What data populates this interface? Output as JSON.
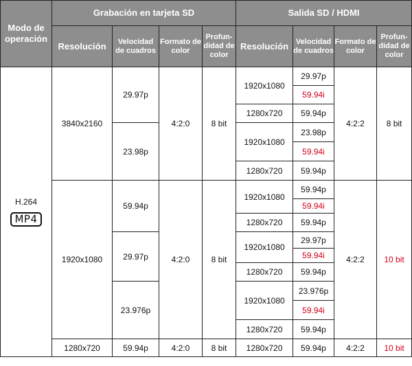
{
  "headers": {
    "mode": "Modo de operación",
    "group_sd": "Grabación en tarjeta SD",
    "group_out": "Salida SD / HDMI",
    "resolution": "Resolución",
    "frame_rate": "Velocidad de cuadros",
    "color_format": "Formato de color",
    "depth": "Profun-didad de color"
  },
  "mode": {
    "codec": "H.264",
    "container": "MP4"
  },
  "rows": {
    "a1_res": "3840x2160",
    "a1_fps1": "29.97p",
    "a1_fps2": "23.98p",
    "a1_fmt": "4:2:0",
    "a1_bit": "8 bit",
    "a2_res": "1920x1080",
    "a2_fps1": "59.94p",
    "a2_fps2": "29.97p",
    "a2_fps3": "23.976p",
    "a2_fmt": "4:2:0",
    "a2_bit": "8 bit",
    "a3_res": "1280x720",
    "a3_fps": "59.94p",
    "a3_fmt": "4:2:0",
    "a3_bit": "8 bit"
  },
  "out": {
    "r1": "1920x1080",
    "r1a": "29.97p",
    "r1b": "59.94i",
    "r2": "1280x720",
    "r2a": "59.94p",
    "r3": "1920x1080",
    "r3a": "23.98p",
    "r3b": "59.94i",
    "r4": "1280x720",
    "r4a": "59.94p",
    "fmt1": "4:2:2",
    "bit1": "8 bit",
    "r5": "1920x1080",
    "r5a": "59.94p",
    "r5b": "59.94i",
    "r6": "1280x720",
    "r6a": "59.94p",
    "r7": "1920x1080",
    "r7a": "29.97p",
    "r7b": "59.94i",
    "r8": "1280x720",
    "r8a": "59.94p",
    "r9": "1920x1080",
    "r9a": "23.976p",
    "r9b": "59.94i",
    "r10": "1280x720",
    "r10a": "59.94p",
    "fmt2": "4:2:2",
    "bit2": "10 bit",
    "r11": "1280x720",
    "r11a": "59.94p",
    "fmt3": "4:2:2",
    "bit3": "10 bit"
  },
  "colors": {
    "header_bg": "#8e8e8e",
    "accent_red": "#d0021b"
  }
}
